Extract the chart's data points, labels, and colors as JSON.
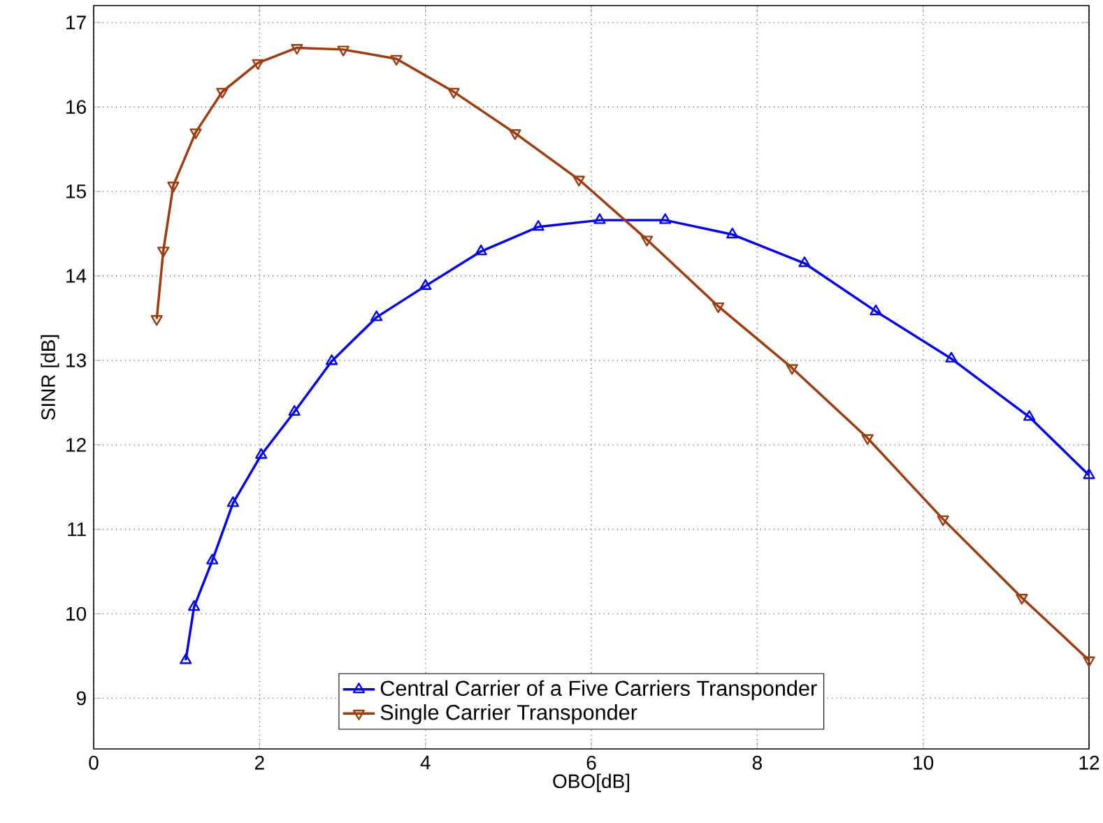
{
  "chart_data": {
    "type": "line",
    "xlabel": "OBO[dB]",
    "ylabel": "SINR [dB]",
    "xlim": [
      0,
      12
    ],
    "ylim": [
      8.4,
      17.2
    ],
    "xticks": [
      0,
      2,
      4,
      6,
      8,
      10,
      12
    ],
    "yticks": [
      9,
      10,
      11,
      12,
      13,
      14,
      15,
      16,
      17
    ],
    "grid": true,
    "legend": "bottom",
    "line_style": "solid",
    "series": [
      {
        "name": "Central Carrier of a Five Carriers Transponder",
        "color": "#0000ff",
        "marker": "triangle",
        "x": [
          1.11,
          1.21,
          1.43,
          1.68,
          2.02,
          2.42,
          2.87,
          3.41,
          4.0,
          4.67,
          5.36,
          6.1,
          6.89,
          7.7,
          8.57,
          9.43,
          10.34,
          11.28,
          12.0
        ],
        "values": [
          9.45,
          10.08,
          10.63,
          11.31,
          11.88,
          12.39,
          12.99,
          13.51,
          13.88,
          14.29,
          14.58,
          14.66,
          14.66,
          14.49,
          14.15,
          13.58,
          13.02,
          12.33,
          11.64
        ]
      },
      {
        "name": "Single Carrier Transponder",
        "color": "#a33a0d",
        "marker": "triangle down",
        "x": [
          0.76,
          0.84,
          0.96,
          1.23,
          1.55,
          1.98,
          2.45,
          3.01,
          3.65,
          4.34,
          5.08,
          5.85,
          6.67,
          7.53,
          8.42,
          9.33,
          10.24,
          11.19,
          12.0
        ],
        "values": [
          13.49,
          14.3,
          15.07,
          15.7,
          16.18,
          16.52,
          16.7,
          16.68,
          16.57,
          16.18,
          15.69,
          15.14,
          14.43,
          13.64,
          12.91,
          12.08,
          11.12,
          10.19,
          9.45
        ]
      }
    ]
  }
}
